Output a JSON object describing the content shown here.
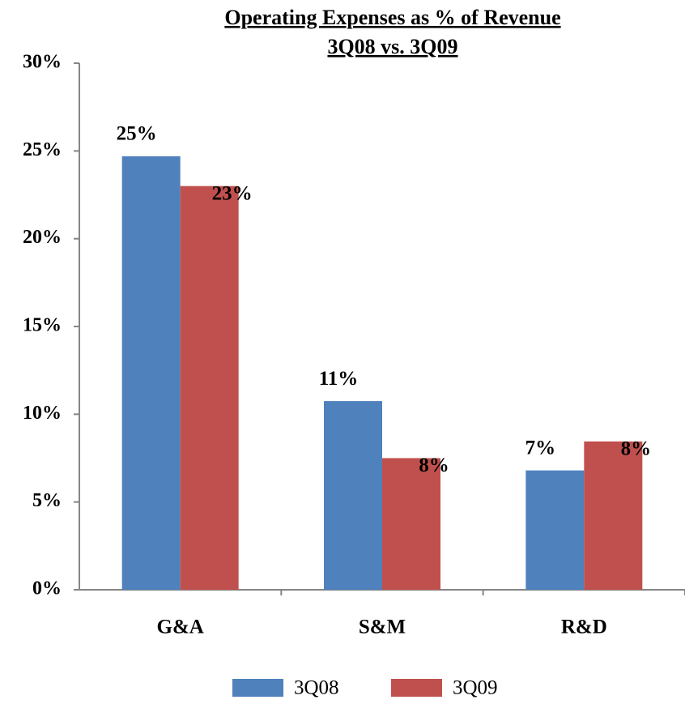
{
  "chart_data": {
    "type": "bar",
    "title": "Operating Expenses as % of Revenue",
    "subtitle": "3Q08 vs. 3Q09",
    "categories": [
      "G&A",
      "S&M",
      "R&D"
    ],
    "series": [
      {
        "name": "3Q08",
        "color": "#4f81bd",
        "values": [
          24.7,
          10.75,
          6.8
        ],
        "value_labels": [
          "25%",
          "11%",
          "7%"
        ]
      },
      {
        "name": "3Q09",
        "color": "#c0504d",
        "values": [
          23.0,
          7.5,
          8.45
        ],
        "value_labels": [
          "23%",
          "8%",
          "8%"
        ]
      }
    ],
    "ylim": [
      0,
      30
    ],
    "yticks": [
      {
        "value": 0,
        "label": "0%"
      },
      {
        "value": 5,
        "label": "5%"
      },
      {
        "value": 10,
        "label": "10%"
      },
      {
        "value": 15,
        "label": "15%"
      },
      {
        "value": 20,
        "label": "20%"
      },
      {
        "value": 25,
        "label": "25%"
      },
      {
        "value": 30,
        "label": "30%"
      }
    ],
    "legend": "bottom"
  }
}
